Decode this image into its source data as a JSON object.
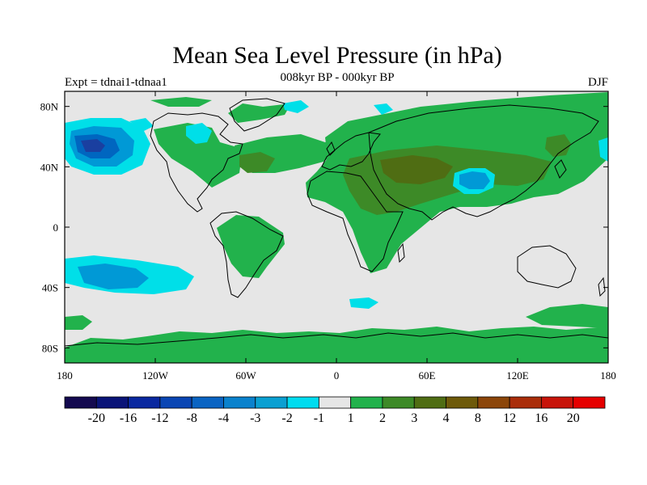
{
  "title": "Mean Sea Level Pressure (in hPa)",
  "subtitle": "008kyr BP - 000kyr BP",
  "left_label": "Expt = tdnai1-tdnaa1",
  "right_label": "DJF",
  "map": {
    "lon_range": [
      -180,
      180
    ],
    "lat_range": [
      -90,
      90
    ],
    "x_ticks": [
      {
        "value": -180,
        "label": "180"
      },
      {
        "value": -120,
        "label": "120W"
      },
      {
        "value": -60,
        "label": "60W"
      },
      {
        "value": 0,
        "label": "0"
      },
      {
        "value": 60,
        "label": "60E"
      },
      {
        "value": 120,
        "label": "120E"
      },
      {
        "value": 180,
        "label": "180"
      }
    ],
    "y_ticks": [
      {
        "value": 80,
        "label": "80N"
      },
      {
        "value": 40,
        "label": "40N"
      },
      {
        "value": 0,
        "label": "0"
      },
      {
        "value": -40,
        "label": "40S"
      },
      {
        "value": -80,
        "label": "80S"
      }
    ],
    "colors": {
      "neutral": "#e6e6e6",
      "pos1": "#22b24c",
      "pos2": "#3d8a27",
      "pos3": "#4f6d13",
      "neg1": "#00dfe8",
      "neg2": "#0099d6",
      "neg3": "#0066c0",
      "neg4": "#1a3fa0"
    }
  },
  "colorbar": {
    "colors": [
      "#140a50",
      "#0a1478",
      "#0a28a0",
      "#0a46b4",
      "#0a64c3",
      "#0a82cd",
      "#0aa0d2",
      "#00dcf0",
      "#e6e6e6",
      "#22b24c",
      "#3d8a27",
      "#4f6d13",
      "#6e5a0a",
      "#8c460a",
      "#aa2d0a",
      "#c8140a",
      "#e60000"
    ],
    "labels": [
      "-20",
      "-16",
      "-12",
      "-8",
      "-4",
      "-3",
      "-2",
      "-1",
      "1",
      "2",
      "3",
      "4",
      "8",
      "12",
      "16",
      "20"
    ]
  }
}
